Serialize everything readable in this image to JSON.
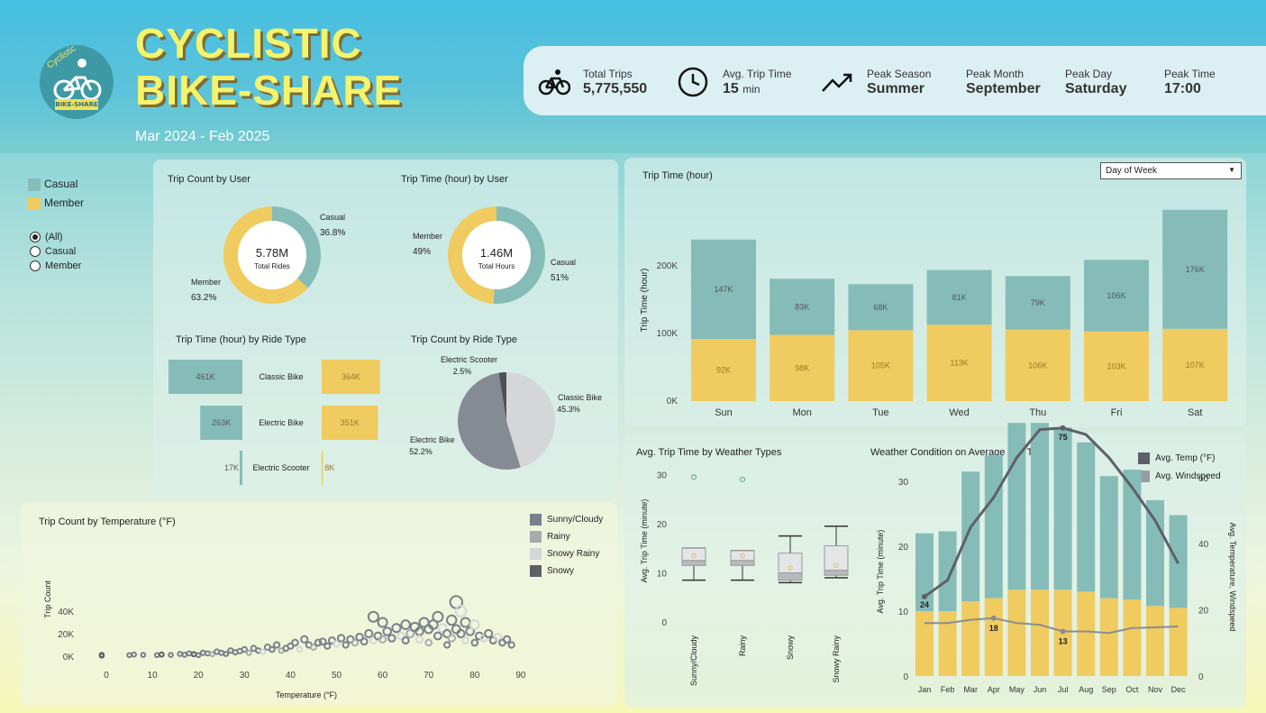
{
  "header": {
    "logo_text": "Cyclistic",
    "logo_badge": "BIKE-SHARE",
    "title_line1": "CYCLISTIC",
    "title_line2": "BIKE-SHARE",
    "subtitle": "Mar 2024 - Feb 2025"
  },
  "kpis": {
    "total_trips": {
      "label": "Total Trips",
      "value": "5,775,550",
      "icon": "bike-icon"
    },
    "avg_trip_time": {
      "label": "Avg. Trip Time",
      "value": "15",
      "unit": "min",
      "icon": "clock-icon"
    },
    "peak_season": {
      "label": "Peak Season",
      "value": "Summer",
      "icon": "trend-up-icon"
    },
    "peak_month": {
      "label": "Peak Month",
      "value": "September"
    },
    "peak_day": {
      "label": "Peak Day",
      "value": "Saturday"
    },
    "peak_time": {
      "label": "Peak Time",
      "value": "17:00"
    }
  },
  "legend": {
    "casual": "Casual",
    "member": "Member"
  },
  "filter": {
    "options": [
      "(All)",
      "Casual",
      "Member"
    ],
    "selected": "(All)"
  },
  "colors": {
    "casual": "#85bcb8",
    "member": "#f0cb60",
    "sunny": "#7a7f8c",
    "rainy": "#a8aaad",
    "snowy_rainy": "#d4d6d8",
    "snowy": "#5e6068"
  },
  "dropdown": {
    "value": "Day of Week"
  },
  "chart_data": [
    {
      "id": "trip_count_by_user",
      "type": "pie",
      "title": "Trip Count by User",
      "center_value": "5.78M",
      "center_label": "Total Rides",
      "slices": [
        {
          "name": "Casual",
          "value": 36.8,
          "label": "36.8%"
        },
        {
          "name": "Member",
          "value": 63.2,
          "label": "63.2%"
        }
      ]
    },
    {
      "id": "trip_time_by_user",
      "type": "pie",
      "title": "Trip Time (hour) by User",
      "center_value": "1.46M",
      "center_label": "Total Hours",
      "slices": [
        {
          "name": "Casual",
          "value": 51,
          "label": "51%"
        },
        {
          "name": "Member",
          "value": 49,
          "label": "49%"
        }
      ]
    },
    {
      "id": "trip_time_by_ride_type",
      "type": "bar",
      "title": "Trip Time (hour) by Ride Type",
      "categories": [
        "Classic Bike",
        "Electric Bike",
        "Electric Scooter"
      ],
      "series": [
        {
          "name": "Casual",
          "values": [
            461,
            263,
            17
          ],
          "labels": [
            "461K",
            "263K",
            "17K"
          ]
        },
        {
          "name": "Member",
          "values": [
            364,
            351,
            8
          ],
          "labels": [
            "364K",
            "351K",
            "8K"
          ]
        }
      ]
    },
    {
      "id": "trip_count_by_ride_type",
      "type": "pie",
      "title": "Trip Count by Ride Type",
      "slices": [
        {
          "name": "Classic Bike",
          "value": 45.3,
          "label": "45.3%"
        },
        {
          "name": "Electric Bike",
          "value": 52.2,
          "label": "52.2%"
        },
        {
          "name": "Electric Scooter",
          "value": 2.5,
          "label": "2.5%"
        }
      ]
    },
    {
      "id": "trip_time_by_day",
      "type": "bar",
      "title": "Trip Time (hour)",
      "ylabel": "Trip Time (hour)",
      "categories": [
        "Sun",
        "Mon",
        "Tue",
        "Wed",
        "Thu",
        "Fri",
        "Sat"
      ],
      "yticks": [
        "0K",
        "100K",
        "200K"
      ],
      "ylim": [
        0,
        300
      ],
      "series": [
        {
          "name": "Member",
          "values": [
            92,
            98,
            105,
            113,
            106,
            103,
            107
          ],
          "labels": [
            "92K",
            "98K",
            "105K",
            "113K",
            "106K",
            "103K",
            "107K"
          ]
        },
        {
          "name": "Casual",
          "values": [
            147,
            83,
            68,
            81,
            79,
            106,
            176
          ],
          "labels": [
            "147K",
            "83K",
            "68K",
            "81K",
            "79K",
            "106K",
            "176K"
          ]
        }
      ]
    },
    {
      "id": "avg_trip_time_by_weather",
      "type": "box",
      "title": "Avg. Trip Time by Weather Types",
      "ylabel": "Avg. Trip Time (minute)",
      "yticks": [
        "0",
        "10",
        "20",
        "30"
      ],
      "ylim": [
        0,
        30
      ],
      "categories": [
        "Sunny/Cloudy",
        "Rainy",
        "Snowy",
        "Snowy Rainy"
      ],
      "boxes": [
        {
          "min": 8.5,
          "q1": 11.5,
          "median": 12.5,
          "q3": 15,
          "max": 15,
          "outliers": [
            29.5
          ]
        },
        {
          "min": 8.5,
          "q1": 11.5,
          "median": 12.5,
          "q3": 14.5,
          "max": 14.5,
          "outliers": [
            29
          ]
        },
        {
          "min": 8,
          "q1": 8.5,
          "median": 10,
          "q3": 14,
          "max": 17.5,
          "outliers": []
        },
        {
          "min": 9,
          "q1": 9.5,
          "median": 10.5,
          "q3": 15.5,
          "max": 19.5,
          "outliers": []
        }
      ]
    },
    {
      "id": "weather_on_avg_trip_time",
      "type": "bar",
      "title": "Weather Condition on Average Trip Time",
      "ylabel": "Avg. Trip Time (minute)",
      "y2label": "Avg. Temperature, Windspeed",
      "yticks": [
        "0",
        "10",
        "20",
        "30"
      ],
      "y2ticks": [
        "0",
        "20",
        "40",
        "60"
      ],
      "categories": [
        "Jan",
        "Feb",
        "Mar",
        "Apr",
        "May",
        "Jun",
        "Jul",
        "Aug",
        "Sep",
        "Oct",
        "Nov",
        "Dec"
      ],
      "series": [
        {
          "name": "Member",
          "values": [
            10,
            10,
            11.5,
            12,
            13.3,
            13.3,
            13.3,
            13,
            12,
            11.8,
            10.8,
            10.5
          ]
        },
        {
          "name": "Casual",
          "values": [
            12,
            12.3,
            20,
            22,
            25.7,
            25.7,
            25,
            23,
            18.8,
            20,
            16.3,
            14.3
          ]
        }
      ],
      "lines": [
        {
          "name": "Avg. Temp (°F)",
          "values": [
            24,
            29,
            45,
            54,
            66,
            74.5,
            75,
            73,
            66,
            57,
            47,
            34
          ],
          "point_labels": {
            "0": "24",
            "6": "75"
          }
        },
        {
          "name": "Avg. Windspeed",
          "values": [
            16,
            16,
            17,
            17.5,
            16,
            15.5,
            13.5,
            13.5,
            13,
            14.5,
            14.7,
            15
          ],
          "point_labels": {
            "3": "18",
            "6": "13"
          }
        }
      ]
    },
    {
      "id": "trip_count_by_temperature",
      "type": "scatter",
      "title": "Trip Count by Temperature (°F)",
      "xlabel": "Temperature (°F)",
      "ylabel": "Trip Count",
      "xticks": [
        "0",
        "10",
        "20",
        "30",
        "40",
        "50",
        "60",
        "70",
        "80",
        "90"
      ],
      "yticks": [
        "0K",
        "20K",
        "40K"
      ],
      "xlim": [
        -3,
        93
      ],
      "ylim": [
        0,
        48
      ],
      "series_names": [
        "Sunny/Cloudy",
        "Rainy",
        "Snowy Rainy",
        "Snowy"
      ],
      "points": [
        [
          -1,
          0.5,
          3
        ],
        [
          -1,
          1.2,
          3
        ],
        [
          5,
          1,
          0
        ],
        [
          6,
          1.5,
          0
        ],
        [
          8,
          1.2,
          0
        ],
        [
          11,
          1,
          0
        ],
        [
          12,
          1.5,
          3
        ],
        [
          14,
          1.2,
          0
        ],
        [
          16,
          2,
          0
        ],
        [
          17,
          1.3,
          0
        ],
        [
          18,
          2.5,
          0
        ],
        [
          19,
          1.8,
          3
        ],
        [
          20,
          1,
          0
        ],
        [
          21,
          3,
          0
        ],
        [
          22,
          2.5,
          0
        ],
        [
          23,
          1.8,
          1
        ],
        [
          24,
          4,
          0
        ],
        [
          25,
          3,
          0
        ],
        [
          26,
          2,
          0
        ],
        [
          27,
          5,
          0
        ],
        [
          28,
          3.5,
          0
        ],
        [
          29,
          4.5,
          0
        ],
        [
          30,
          6,
          0
        ],
        [
          31,
          3,
          1
        ],
        [
          32,
          7,
          0
        ],
        [
          33,
          5,
          0
        ],
        [
          34,
          4,
          2
        ],
        [
          35,
          8,
          0
        ],
        [
          36,
          6,
          0
        ],
        [
          37,
          10,
          0
        ],
        [
          38,
          5,
          1
        ],
        [
          39,
          7,
          0
        ],
        [
          40,
          9,
          0
        ],
        [
          41,
          12,
          0
        ],
        [
          42,
          6,
          2
        ],
        [
          43,
          15,
          0
        ],
        [
          44,
          10,
          0
        ],
        [
          45,
          8,
          1
        ],
        [
          46,
          12,
          0
        ],
        [
          47,
          13,
          0
        ],
        [
          48,
          9,
          0
        ],
        [
          49,
          14,
          0
        ],
        [
          50,
          11,
          2
        ],
        [
          51,
          16,
          0
        ],
        [
          52,
          10,
          0
        ],
        [
          53,
          15,
          0
        ],
        [
          54,
          12,
          1
        ],
        [
          55,
          17,
          0
        ],
        [
          56,
          13,
          0
        ],
        [
          57,
          20,
          0
        ],
        [
          58,
          35,
          0
        ],
        [
          58,
          14,
          2
        ],
        [
          59,
          18,
          0
        ],
        [
          60,
          30,
          0
        ],
        [
          60,
          15,
          1
        ],
        [
          61,
          22,
          0
        ],
        [
          62,
          16,
          0
        ],
        [
          63,
          25,
          0
        ],
        [
          64,
          18,
          2
        ],
        [
          65,
          28,
          0
        ],
        [
          65,
          14,
          0
        ],
        [
          66,
          20,
          1
        ],
        [
          67,
          26,
          0
        ],
        [
          68,
          22,
          0
        ],
        [
          68,
          15,
          2
        ],
        [
          69,
          30,
          0
        ],
        [
          70,
          24,
          0
        ],
        [
          70,
          12,
          1
        ],
        [
          71,
          28,
          0
        ],
        [
          72,
          18,
          0
        ],
        [
          72,
          35,
          0
        ],
        [
          73,
          25,
          2
        ],
        [
          74,
          20,
          0
        ],
        [
          74,
          10,
          0
        ],
        [
          75,
          32,
          0
        ],
        [
          75,
          16,
          1
        ],
        [
          76,
          24,
          0
        ],
        [
          76,
          48,
          0
        ],
        [
          77,
          40,
          2
        ],
        [
          77,
          20,
          0
        ],
        [
          78,
          30,
          0
        ],
        [
          78,
          14,
          2
        ],
        [
          79,
          22,
          0
        ],
        [
          80,
          28,
          2
        ],
        [
          80,
          12,
          0
        ],
        [
          81,
          18,
          0
        ],
        [
          82,
          16,
          2
        ],
        [
          83,
          20,
          0
        ],
        [
          84,
          14,
          0
        ],
        [
          85,
          17,
          2
        ],
        [
          86,
          12,
          0
        ],
        [
          87,
          15,
          0
        ],
        [
          88,
          10,
          0
        ]
      ]
    }
  ]
}
